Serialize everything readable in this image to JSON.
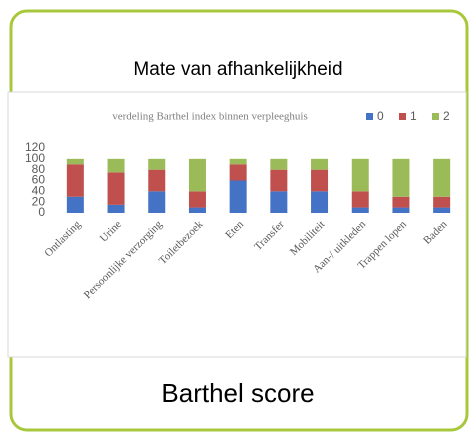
{
  "heading": "Mate van afhankelijkheid",
  "chart_data": {
    "type": "stacked_bar",
    "title": "verdeling Barthel index binnen verpleeghuis",
    "categories": [
      "Ontlasting",
      "Urine",
      "Persoonlijke verzorging",
      "Toiletbezoek",
      "Eten",
      "Transfer",
      "Mobiliteit",
      "Aan-/ uitkleden",
      "Trappen lopen",
      "Baden"
    ],
    "series": [
      {
        "name": "0",
        "color": "#4472c4",
        "values": [
          30,
          15,
          40,
          10,
          60,
          40,
          40,
          10,
          10,
          10
        ]
      },
      {
        "name": "1",
        "color": "#c0504d",
        "values": [
          60,
          60,
          40,
          30,
          30,
          40,
          40,
          30,
          20,
          20
        ]
      },
      {
        "name": "2",
        "color": "#9bbb59",
        "values": [
          10,
          25,
          20,
          60,
          10,
          20,
          20,
          60,
          70,
          70
        ]
      }
    ],
    "ylim": [
      0,
      120
    ],
    "yticks": [
      0,
      20,
      40,
      60,
      80,
      100,
      120
    ],
    "grid": false,
    "legend": "top-right"
  },
  "footer": "Barthel score"
}
